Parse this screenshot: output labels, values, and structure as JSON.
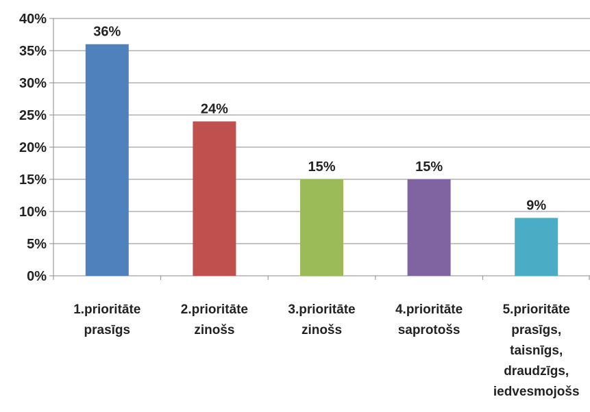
{
  "chart_data": {
    "type": "bar",
    "categories": [
      [
        "1.prioritāte",
        "prasīgs"
      ],
      [
        "2.prioritāte",
        "zinošs"
      ],
      [
        "3.prioritāte",
        "zinošs"
      ],
      [
        "4.prioritāte",
        "saprotošs"
      ],
      [
        "5.prioritāte",
        "prasīgs,",
        "taisnīgs,",
        "draudzīgs,",
        "iedvesmojošs"
      ]
    ],
    "values": [
      36,
      24,
      15,
      15,
      9
    ],
    "data_labels": [
      "36%",
      "24%",
      "15%",
      "15%",
      "9%"
    ],
    "colors": [
      "#4f81bd",
      "#c0504d",
      "#9bbb59",
      "#8064a2",
      "#4bacc6"
    ],
    "ylim": [
      0,
      40
    ],
    "yticks": [
      "0%",
      "5%",
      "10%",
      "15%",
      "20%",
      "25%",
      "30%",
      "35%",
      "40%"
    ],
    "grid": true,
    "title": "",
    "xlabel": "",
    "ylabel": ""
  }
}
